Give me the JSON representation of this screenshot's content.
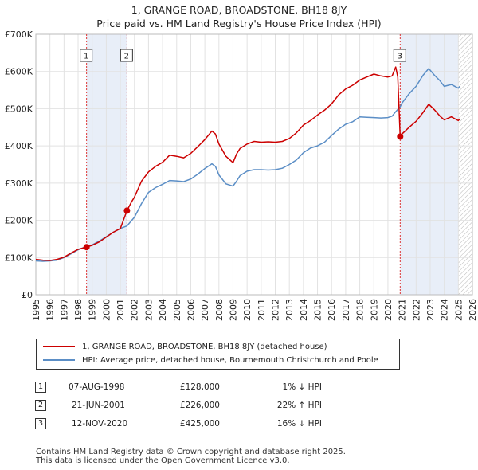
{
  "title_line1": "1, GRANGE ROAD, BROADSTONE, BH18 8JY",
  "title_line2": "Price paid vs. HM Land Registry's House Price Index (HPI)",
  "colors": {
    "property": "#cc0000",
    "hpi": "#5b8ec6",
    "grid": "#e2e2e2",
    "band": "#e8eef8"
  },
  "chart_data": {
    "type": "line",
    "title": "1, GRANGE ROAD, BROADSTONE, BH18 8JY — Price paid vs. HM Land Registry's House Price Index (HPI)",
    "xlim": [
      1995,
      2026
    ],
    "ylim": [
      0,
      700000
    ],
    "y_ticks": [
      0,
      100000,
      200000,
      300000,
      400000,
      500000,
      600000,
      700000
    ],
    "y_tick_labels": [
      "£0",
      "£100K",
      "£200K",
      "£300K",
      "£400K",
      "£500K",
      "£600K",
      "£700K"
    ],
    "x_ticks": [
      1995,
      1996,
      1997,
      1998,
      1999,
      2000,
      2001,
      2002,
      2003,
      2004,
      2005,
      2006,
      2007,
      2008,
      2009,
      2010,
      2011,
      2012,
      2013,
      2014,
      2015,
      2016,
      2017,
      2018,
      2019,
      2020,
      2021,
      2022,
      2023,
      2024,
      2025,
      2026
    ],
    "shaded_ranges": [
      [
        1998.6,
        2001.47
      ],
      [
        2020.87,
        2025.0
      ]
    ],
    "hatched_range": [
      2025.0,
      2026.0
    ],
    "series": [
      {
        "name": "1, GRANGE ROAD, BROADSTONE, BH18 8JY (detached house)",
        "color": "#cc0000",
        "x": [
          1995,
          1995.5,
          1996,
          1996.5,
          1997,
          1997.5,
          1998,
          1998.6,
          1999,
          1999.5,
          2000,
          2000.5,
          2001,
          2001.47,
          2001.8,
          2002,
          2002.5,
          2003,
          2003.5,
          2004,
          2004.5,
          2005,
          2005.5,
          2006,
          2006.5,
          2007,
          2007.5,
          2007.75,
          2008,
          2008.5,
          2009,
          2009.25,
          2009.5,
          2010,
          2010.5,
          2011,
          2011.5,
          2012,
          2012.5,
          2013,
          2013.5,
          2014,
          2014.5,
          2015,
          2015.5,
          2016,
          2016.5,
          2017,
          2017.5,
          2018,
          2018.5,
          2019,
          2019.5,
          2020,
          2020.3,
          2020.55,
          2020.7,
          2020.87,
          2021,
          2021.5,
          2022,
          2022.5,
          2022.9,
          2023.3,
          2023.7,
          2024,
          2024.5,
          2025,
          2025.1
        ],
        "y": [
          95000,
          93000,
          92000,
          95000,
          101000,
          112000,
          122000,
          128000,
          133000,
          142000,
          155000,
          168000,
          178000,
          226000,
          250000,
          262000,
          305000,
          330000,
          345000,
          356000,
          375000,
          372000,
          368000,
          380000,
          398000,
          417000,
          440000,
          432000,
          405000,
          372000,
          355000,
          378000,
          393000,
          405000,
          412000,
          410000,
          411000,
          410000,
          412000,
          420000,
          435000,
          456000,
          468000,
          483000,
          496000,
          513000,
          537000,
          553000,
          563000,
          577000,
          585000,
          593000,
          588000,
          585000,
          588000,
          612000,
          585000,
          425000,
          432000,
          450000,
          466000,
          490000,
          512000,
          497000,
          480000,
          470000,
          478000,
          468000,
          472000
        ]
      },
      {
        "name": "HPI: Average price, detached house, Bournemouth Christchurch and Poole",
        "color": "#5b8ec6",
        "x": [
          1995,
          1995.5,
          1996,
          1996.5,
          1997,
          1997.5,
          1998,
          1998.6,
          1999,
          1999.5,
          2000,
          2000.5,
          2001,
          2001.47,
          2002,
          2002.5,
          2003,
          2003.5,
          2004,
          2004.5,
          2005,
          2005.5,
          2006,
          2006.5,
          2007,
          2007.5,
          2007.75,
          2008,
          2008.5,
          2009,
          2009.25,
          2009.5,
          2010,
          2010.5,
          2011,
          2011.5,
          2012,
          2012.5,
          2013,
          2013.5,
          2014,
          2014.5,
          2015,
          2015.5,
          2016,
          2016.5,
          2017,
          2017.5,
          2018,
          2018.5,
          2019,
          2019.5,
          2020,
          2020.3,
          2020.55,
          2020.87,
          2021,
          2021.5,
          2022,
          2022.5,
          2022.9,
          2023.3,
          2023.7,
          2024,
          2024.5,
          2025,
          2025.1
        ],
        "y": [
          91000,
          90000,
          91000,
          93000,
          100000,
          110000,
          121000,
          130000,
          134000,
          144000,
          156000,
          168000,
          178000,
          185000,
          208000,
          245000,
          275000,
          288000,
          297000,
          307000,
          306000,
          304000,
          311000,
          324000,
          339000,
          352000,
          345000,
          322000,
          298000,
          292000,
          305000,
          320000,
          332000,
          336000,
          336000,
          335000,
          336000,
          340000,
          350000,
          362000,
          382000,
          394000,
          400000,
          410000,
          428000,
          445000,
          458000,
          465000,
          478000,
          477000,
          476000,
          475000,
          476000,
          480000,
          492000,
          505000,
          515000,
          540000,
          560000,
          590000,
          608000,
          590000,
          575000,
          560000,
          565000,
          555000,
          560000
        ]
      }
    ],
    "sales": [
      {
        "label": "1",
        "x": 1998.6,
        "y": 128000
      },
      {
        "label": "2",
        "x": 2001.47,
        "y": 226000
      },
      {
        "label": "3",
        "x": 2020.87,
        "y": 425000
      }
    ]
  },
  "legend": {
    "property_label": "1, GRANGE ROAD, BROADSTONE, BH18 8JY (detached house)",
    "hpi_label": "HPI: Average price, detached house, Bournemouth Christchurch and Poole"
  },
  "transactions": [
    {
      "num": "1",
      "date": "07-AUG-1998",
      "price": "£128,000",
      "hpi": "1% ↓ HPI"
    },
    {
      "num": "2",
      "date": "21-JUN-2001",
      "price": "£226,000",
      "hpi": "22% ↑ HPI"
    },
    {
      "num": "3",
      "date": "12-NOV-2020",
      "price": "£425,000",
      "hpi": "16% ↓ HPI"
    }
  ],
  "footer_line1": "Contains HM Land Registry data © Crown copyright and database right 2025.",
  "footer_line2": "This data is licensed under the Open Government Licence v3.0."
}
